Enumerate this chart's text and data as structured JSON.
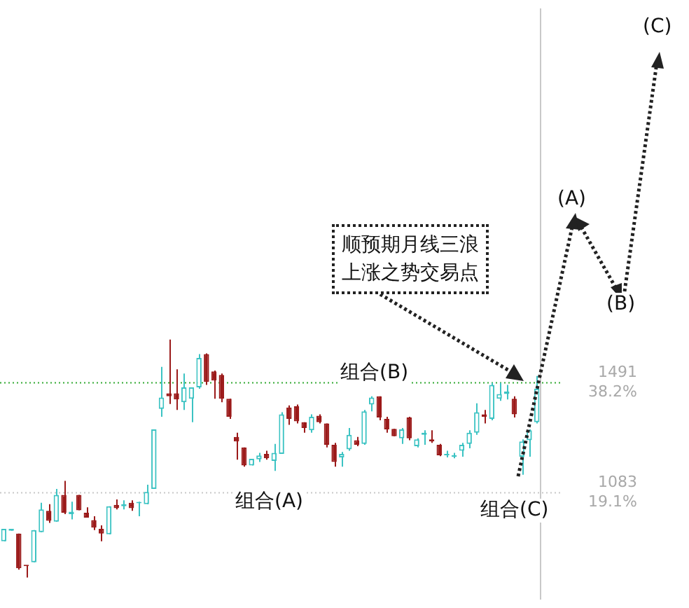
{
  "chart_data": {
    "type": "candlestick",
    "tick_labels": "y",
    "grid": false,
    "categories": [
      null,
      null,
      null,
      null,
      null,
      null,
      null,
      null,
      null,
      null,
      null,
      null,
      null,
      null,
      null,
      null,
      null,
      null,
      null,
      null,
      null,
      null,
      null,
      null,
      null,
      null,
      null,
      null,
      null,
      null,
      null,
      null,
      null,
      null,
      null,
      null,
      null,
      null,
      null,
      null,
      null,
      null,
      null,
      null,
      null,
      null,
      null,
      null,
      null,
      null,
      null,
      null,
      null,
      null,
      null,
      null,
      null,
      null,
      null,
      null,
      null,
      null,
      null,
      null,
      null,
      null,
      null,
      null,
      null,
      null,
      null,
      null
    ],
    "ohlc": [
      [
        903,
        949,
        903,
        949
      ],
      [
        942,
        949,
        942,
        949
      ],
      [
        932,
        932,
        798,
        803
      ],
      [
        813,
        813,
        769,
        811
      ],
      [
        825,
        945,
        825,
        945
      ],
      [
        937,
        1046,
        937,
        1021
      ],
      [
        1016,
        1041,
        971,
        979
      ],
      [
        976,
        1097,
        976,
        1075
      ],
      [
        1075,
        1127,
        1004,
        1009
      ],
      [
        1004,
        1050,
        984,
        1013
      ],
      [
        1075,
        1075,
        1018,
        1018
      ],
      [
        1009,
        1029,
        991,
        991
      ],
      [
        982,
        996,
        945,
        954
      ],
      [
        949,
        962,
        903,
        932
      ],
      [
        929,
        1033,
        929,
        1033
      ],
      [
        1038,
        1058,
        1021,
        1026
      ],
      [
        1033,
        1055,
        1021,
        1041
      ],
      [
        1046,
        1055,
        1016,
        1026
      ],
      [
        1044,
        1050,
        996,
        1046
      ],
      [
        1041,
        1113,
        1041,
        1086
      ],
      [
        1097,
        1318,
        1097,
        1318
      ],
      [
        1394,
        1550,
        1365,
        1436
      ],
      [
        1452,
        1651,
        1412,
        1441
      ],
      [
        1452,
        1541,
        1390,
        1429
      ],
      [
        1419,
        1525,
        1390,
        1474
      ],
      [
        1432,
        1474,
        1345,
        1474
      ],
      [
        1474,
        1597,
        1469,
        1583
      ],
      [
        1597,
        1600,
        1483,
        1494
      ],
      [
        1533,
        1536,
        1432,
        1499
      ],
      [
        1520,
        1525,
        1419,
        1432
      ],
      [
        1432,
        1432,
        1357,
        1365
      ],
      [
        1290,
        1306,
        1206,
        1273
      ],
      [
        1251,
        1251,
        1180,
        1184
      ],
      [
        1184,
        1209,
        1184,
        1209
      ],
      [
        1207,
        1231,
        1197,
        1221
      ],
      [
        1227,
        1239,
        1206,
        1211
      ],
      [
        1201,
        1264,
        1164,
        1231
      ],
      [
        1227,
        1382,
        1227,
        1374
      ],
      [
        1399,
        1407,
        1335,
        1357
      ],
      [
        1404,
        1410,
        1340,
        1348
      ],
      [
        1345,
        1345,
        1306,
        1323
      ],
      [
        1315,
        1374,
        1306,
        1365
      ],
      [
        1369,
        1374,
        1340,
        1345
      ],
      [
        1340,
        1340,
        1251,
        1261
      ],
      [
        1261,
        1268,
        1180,
        1197
      ],
      [
        1214,
        1234,
        1180,
        1227
      ],
      [
        1244,
        1323,
        1239,
        1298
      ],
      [
        1278,
        1290,
        1256,
        1261
      ],
      [
        1264,
        1390,
        1261,
        1385
      ],
      [
        1410,
        1441,
        1385,
        1436
      ],
      [
        1441,
        1441,
        1352,
        1362
      ],
      [
        1357,
        1365,
        1306,
        1318
      ],
      [
        1320,
        1320,
        1293,
        1293
      ],
      [
        1285,
        1323,
        1264,
        1318
      ],
      [
        1362,
        1365,
        1278,
        1285
      ],
      [
        1256,
        1285,
        1251,
        1281
      ],
      [
        1298,
        1315,
        1261,
        1306
      ],
      [
        1281,
        1315,
        1268,
        1273
      ],
      [
        1261,
        1264,
        1219,
        1222
      ],
      [
        1222,
        1239,
        1214,
        1227
      ],
      [
        1217,
        1231,
        1211,
        1222
      ],
      [
        1239,
        1268,
        1217,
        1261
      ],
      [
        1264,
        1315,
        1248,
        1306
      ],
      [
        1306,
        1415,
        1298,
        1382
      ],
      [
        1374,
        1390,
        1340,
        1365
      ],
      [
        1357,
        1491,
        1352,
        1483
      ],
      [
        1432,
        1491,
        1424,
        1449
      ],
      [
        1449,
        1483,
        1429,
        1458
      ],
      [
        1432,
        1441,
        1362,
        1374
      ],
      [
        1217,
        1281,
        1150,
        1273
      ],
      [
        1278,
        1318,
        1217,
        1315
      ],
      [
        1345,
        1516,
        1340,
        1469
      ]
    ],
    "ylim": [
      690,
      2876
    ],
    "yticks": [
      1083,
      1491
    ],
    "ref_lines": [
      {
        "axis": "y",
        "value": 1491,
        "color": "#33aa33",
        "line_style": "dotted"
      },
      {
        "axis": "y",
        "value": 1083,
        "color": "#c8c8c8",
        "line_style": "dotted"
      }
    ],
    "annotations": [
      "组合(A)",
      "组合(B)",
      "组合(C)",
      "顺预期月线三浪上涨之势交易点",
      "(A)",
      "(B)",
      "(C)"
    ],
    "y2lim": [
      0.7,
      103.04
    ],
    "y2ticks": [
      {
        "value": 19.1,
        "label": "19.1%"
      },
      {
        "value": 38.2,
        "label": "38.2%"
      }
    ]
  }
}
